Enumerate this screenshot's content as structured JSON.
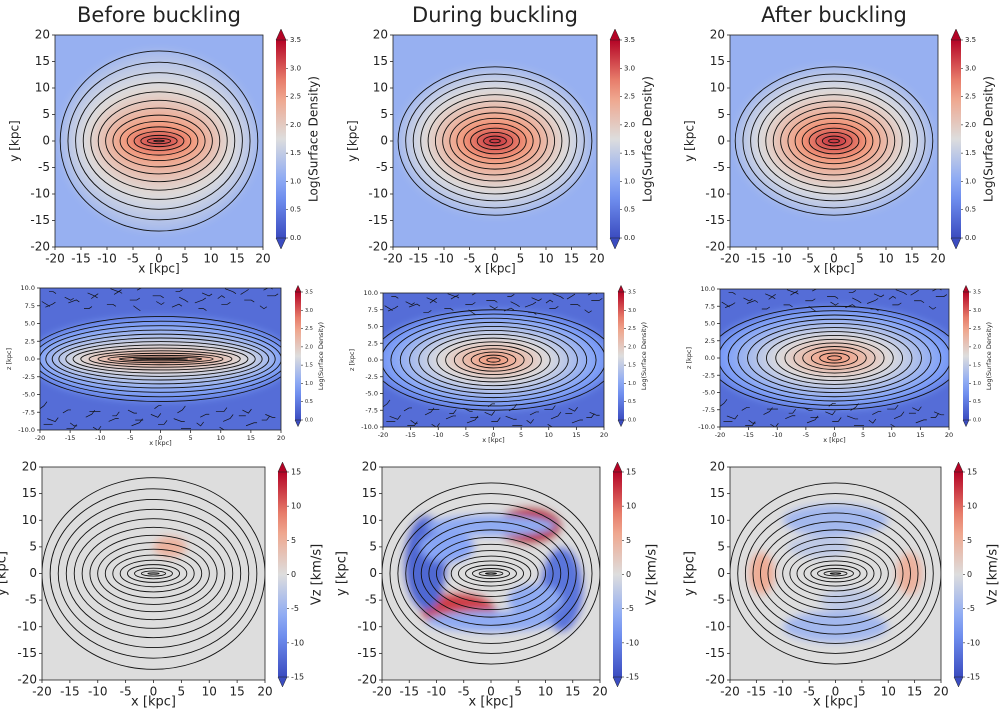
{
  "chart_data": [
    {
      "type": "heatmap",
      "title": "Before buckling",
      "xlabel": "x [kpc]",
      "ylabel": "y [kpc]",
      "xlim": [
        -20,
        20
      ],
      "ylim": [
        -20,
        20
      ],
      "xticks": [
        -20,
        -15,
        -10,
        -5,
        0,
        5,
        10,
        15,
        20
      ],
      "yticks": [
        -20,
        -15,
        -10,
        -5,
        0,
        5,
        10,
        15,
        20
      ],
      "clabel": "Log(Surface Density)",
      "clim": [
        0,
        3.5
      ],
      "cticks": [
        {
          "value": 0,
          "label": "0.0"
        },
        0.5,
        {
          "value": 1,
          "label": "1.0"
        },
        1.5,
        {
          "value": 2,
          "label": "2.0"
        },
        2.5,
        {
          "value": 3,
          "label": "3.0"
        },
        3.5
      ],
      "cmap": "coolwarm",
      "extend": "both"
    },
    {
      "type": "heatmap",
      "title": "During buckling",
      "xlabel": "x [kpc]",
      "ylabel": "y [kpc]",
      "xlim": [
        -20,
        20
      ],
      "ylim": [
        -20,
        20
      ],
      "xticks": [
        -20,
        -15,
        -10,
        -5,
        0,
        5,
        10,
        15,
        20
      ],
      "yticks": [
        -20,
        -15,
        -10,
        -5,
        0,
        5,
        10,
        15,
        20
      ],
      "clabel": "Log(Surface Density)",
      "clim": [
        0,
        3.5
      ],
      "cticks": [
        {
          "value": 0,
          "label": "0.0"
        },
        0.5,
        {
          "value": 1,
          "label": "1.0"
        },
        1.5,
        {
          "value": 2,
          "label": "2.0"
        },
        2.5,
        {
          "value": 3,
          "label": "3.0"
        },
        3.5
      ],
      "cmap": "coolwarm",
      "extend": "both"
    },
    {
      "type": "heatmap",
      "title": "After buckling",
      "xlabel": "x [kpc]",
      "ylabel": "y [kpc]",
      "xlim": [
        -20,
        20
      ],
      "ylim": [
        -20,
        20
      ],
      "xticks": [
        -20,
        -15,
        -10,
        -5,
        0,
        5,
        10,
        15,
        20
      ],
      "yticks": [
        -20,
        -15,
        -10,
        -5,
        0,
        5,
        10,
        15,
        20
      ],
      "clabel": "Log(Surface Density)",
      "clim": [
        0,
        3.5
      ],
      "cticks": [
        {
          "value": 0,
          "label": "0.0"
        },
        0.5,
        {
          "value": 1,
          "label": "1.0"
        },
        1.5,
        {
          "value": 2,
          "label": "2.0"
        },
        2.5,
        {
          "value": 3,
          "label": "3.0"
        },
        3.5
      ],
      "cmap": "coolwarm",
      "extend": "both"
    },
    {
      "type": "heatmap",
      "xlabel": "x [kpc]",
      "ylabel": "z [kpc]",
      "xlim": [
        -20,
        20
      ],
      "ylim": [
        -10,
        10
      ],
      "xticks": [
        -20,
        -15,
        -10,
        -5,
        0,
        5,
        10,
        15,
        20
      ],
      "yticks": [
        {
          "value": -10,
          "label": "-10.0"
        },
        -7.5,
        {
          "value": -5,
          "label": "-5.0"
        },
        -2.5,
        {
          "value": 0,
          "label": "0.0"
        },
        2.5,
        {
          "value": 5,
          "label": "5.0"
        },
        7.5,
        {
          "value": 10,
          "label": "10.0"
        }
      ],
      "clabel": "Log(Surface Density)",
      "clim": [
        0,
        3.5
      ],
      "cticks": [
        {
          "value": 0,
          "label": "0.0"
        },
        0.5,
        {
          "value": 1,
          "label": "1.0"
        },
        1.5,
        {
          "value": 2,
          "label": "2.0"
        },
        2.5,
        {
          "value": 3,
          "label": "3.0"
        },
        3.5
      ],
      "cmap": "coolwarm",
      "extend": "both"
    },
    {
      "type": "heatmap",
      "xlabel": "x [kpc]",
      "ylabel": "z [kpc]",
      "xlim": [
        -20,
        20
      ],
      "ylim": [
        -10,
        10
      ],
      "xticks": [
        -20,
        -15,
        -10,
        -5,
        0,
        5,
        10,
        15,
        20
      ],
      "yticks": [
        {
          "value": -10,
          "label": "-10.0"
        },
        -7.5,
        {
          "value": -5,
          "label": "-5.0"
        },
        -2.5,
        {
          "value": 0,
          "label": "0.0"
        },
        2.5,
        {
          "value": 5,
          "label": "5.0"
        },
        7.5,
        {
          "value": 10,
          "label": "10.0"
        }
      ],
      "clabel": "Log(Surface Density)",
      "clim": [
        0,
        3.5
      ],
      "cticks": [
        {
          "value": 0,
          "label": "0.0"
        },
        0.5,
        {
          "value": 1,
          "label": "1.0"
        },
        1.5,
        {
          "value": 2,
          "label": "2.0"
        },
        2.5,
        {
          "value": 3,
          "label": "3.0"
        },
        3.5
      ],
      "cmap": "coolwarm",
      "extend": "both"
    },
    {
      "type": "heatmap",
      "xlabel": "x [kpc]",
      "ylabel": "z [kpc]",
      "xlim": [
        -20,
        20
      ],
      "ylim": [
        -10,
        10
      ],
      "xticks": [
        -20,
        -15,
        -10,
        -5,
        0,
        5,
        10,
        15,
        20
      ],
      "yticks": [
        {
          "value": -10,
          "label": "-10.0"
        },
        -7.5,
        {
          "value": -5,
          "label": "-5.0"
        },
        -2.5,
        {
          "value": 0,
          "label": "0.0"
        },
        2.5,
        {
          "value": 5,
          "label": "5.0"
        },
        7.5,
        {
          "value": 10,
          "label": "10.0"
        }
      ],
      "clabel": "Log(Surface Density)",
      "clim": [
        0,
        3.5
      ],
      "cticks": [
        {
          "value": 0,
          "label": "0.0"
        },
        0.5,
        {
          "value": 1,
          "label": "1.0"
        },
        1.5,
        {
          "value": 2,
          "label": "2.0"
        },
        2.5,
        {
          "value": 3,
          "label": "3.0"
        },
        3.5
      ],
      "cmap": "coolwarm",
      "extend": "both"
    },
    {
      "type": "heatmap",
      "xlabel": "x [kpc]",
      "ylabel": "y [kpc]",
      "xlim": [
        -20,
        20
      ],
      "ylim": [
        -20,
        20
      ],
      "xticks": [
        -20,
        -15,
        -10,
        -5,
        0,
        5,
        10,
        15,
        20
      ],
      "yticks": [
        -20,
        -15,
        -10,
        -5,
        0,
        5,
        10,
        15,
        20
      ],
      "clabel": "Vz [km/s]",
      "clim": [
        -15,
        15
      ],
      "cticks": [
        -15,
        -10,
        -5,
        0,
        5,
        10,
        15
      ],
      "cmap": "coolwarm",
      "extend": "both"
    },
    {
      "type": "heatmap",
      "xlabel": "x [kpc]",
      "ylabel": "y [kpc]",
      "xlim": [
        -20,
        20
      ],
      "ylim": [
        -20,
        20
      ],
      "xticks": [
        -20,
        -15,
        -10,
        -5,
        0,
        5,
        10,
        15,
        20
      ],
      "yticks": [
        -20,
        -15,
        -10,
        -5,
        0,
        5,
        10,
        15,
        20
      ],
      "clabel": "Vz [km/s]",
      "clim": [
        -15,
        15
      ],
      "cticks": [
        -15,
        -10,
        -5,
        0,
        5,
        10,
        15
      ],
      "cmap": "coolwarm",
      "extend": "both"
    },
    {
      "type": "heatmap",
      "xlabel": "x [kpc]",
      "ylabel": "y [kpc]",
      "xlim": [
        -20,
        20
      ],
      "ylim": [
        -20,
        20
      ],
      "xticks": [
        -20,
        -15,
        -10,
        -5,
        0,
        5,
        10,
        15,
        20
      ],
      "yticks": [
        -20,
        -15,
        -10,
        -5,
        0,
        5,
        10,
        15,
        20
      ],
      "clabel": "Vz [km/s]",
      "clim": [
        -15,
        15
      ],
      "cticks": [
        -15,
        -10,
        -5,
        0,
        5,
        10,
        15
      ],
      "cmap": "coolwarm",
      "extend": "both"
    }
  ]
}
